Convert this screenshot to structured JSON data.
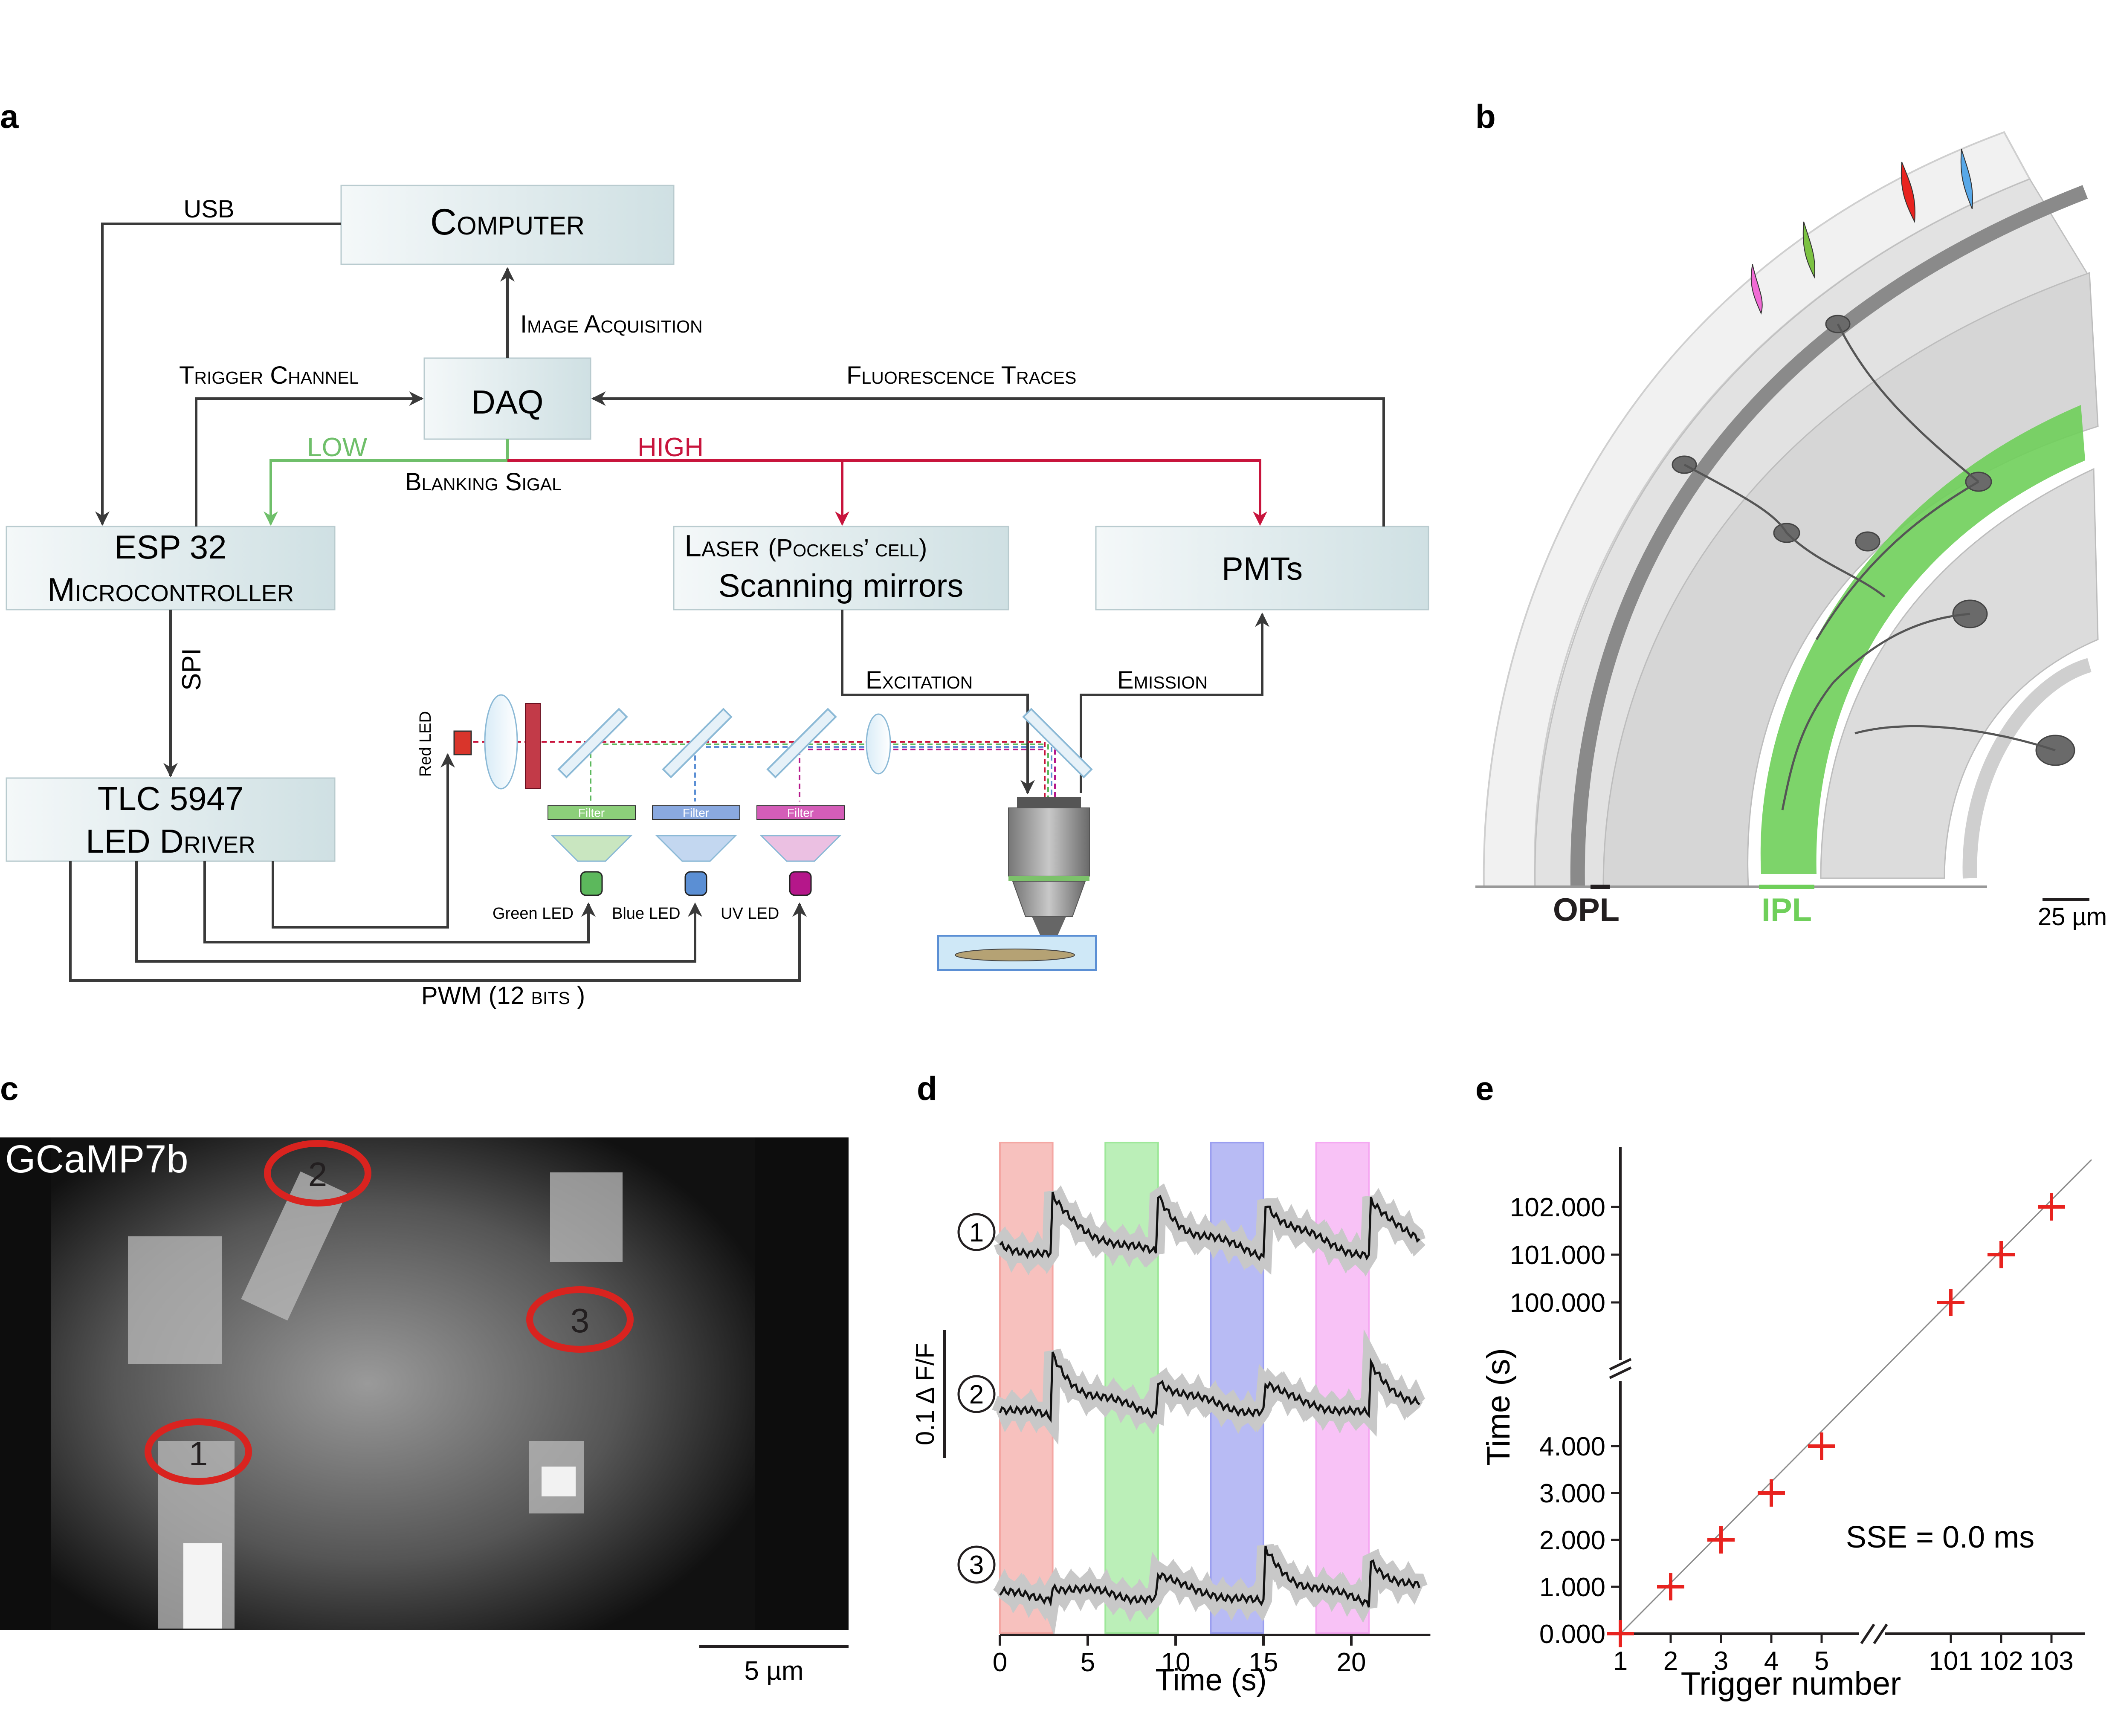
{
  "panels": {
    "a": {
      "label": "a",
      "boxes": {
        "computer": "Computer",
        "daq": "DAQ",
        "esp_line1": "ESP 32",
        "esp_line2": "Microcontroller",
        "laser_line1_main": "Laser",
        "laser_line1_sub": "(Pockels’ cell)",
        "laser_line2": "Scanning mirrors",
        "pmts": "PMTs",
        "tlc_line1": "TLC 5947",
        "tlc_line2": "LED Driver"
      },
      "arrows": {
        "usb": "USB",
        "image_acquisition": "Image Acquisition",
        "trigger_channel": "Trigger Channel",
        "fluorescence_traces": "Fluorescence Traces",
        "low": "LOW",
        "high": "HIGH",
        "blanking": "Blanking Sigal",
        "spi": "SPI",
        "excitation": "Excitation",
        "emission": "Emission",
        "pwm": "PWM (12 bits )"
      },
      "leds": {
        "red": "Red LED",
        "green": "Green LED",
        "blue": "Blue LED",
        "uv": "UV LED",
        "filter": "Filter"
      },
      "colors": {
        "low": "#6fbf6a",
        "high": "#c8143c",
        "box_fill": "#dce8ea",
        "red_led": "#d9352b",
        "green_led": "#5cb85c",
        "blue_led": "#5b8fd4",
        "uv_led": "#b5178a"
      }
    },
    "b": {
      "label": "b",
      "layer_opl": "OPL",
      "layer_ipl": "IPL",
      "scalebar": "25 µm",
      "colors": {
        "ipl": "#6fcf5a",
        "opl": "#231f20",
        "cells": "#d4d4d4"
      }
    },
    "c": {
      "label": "c",
      "title": "GCaMP7b",
      "rois": [
        "1",
        "2",
        "3"
      ],
      "scalebar": "5 µm",
      "roi_color": "#d9231f"
    },
    "d": {
      "label": "d",
      "y_scale": "0.1 Δ F/F",
      "xlabel": "Time (s)",
      "ticks": [
        "0",
        "5",
        "10",
        "15",
        "20"
      ],
      "traces": [
        "1",
        "2",
        "3"
      ],
      "stim_colors": [
        "#f4a7a3",
        "#9ee89a",
        "#9a9ef0",
        "#f5a8f2"
      ]
    },
    "e": {
      "label": "e",
      "annotation": "SSE = 0.0 ms"
    }
  },
  "chart_data": {
    "type": "scatter",
    "title": "",
    "xlabel": "Trigger number",
    "ylabel": "Time (s)",
    "x_tick_labels": [
      "1",
      "2",
      "3",
      "4",
      "5",
      "101",
      "102",
      "103"
    ],
    "y_tick_labels": [
      "0.000",
      "1.000",
      "2.000",
      "3.000",
      "4.000",
      "100.000",
      "101.000",
      "102.000"
    ],
    "series": [
      {
        "x": [
          1,
          2,
          3,
          4,
          5,
          101,
          102,
          103
        ],
        "y": [
          0,
          1,
          2,
          3,
          4,
          100,
          101,
          102
        ]
      }
    ],
    "axis_breaks": {
      "x": [
        5,
        101
      ],
      "y": [
        4,
        100
      ]
    },
    "marker": "plus",
    "marker_color": "#e8231f",
    "reference_line": "identity"
  }
}
